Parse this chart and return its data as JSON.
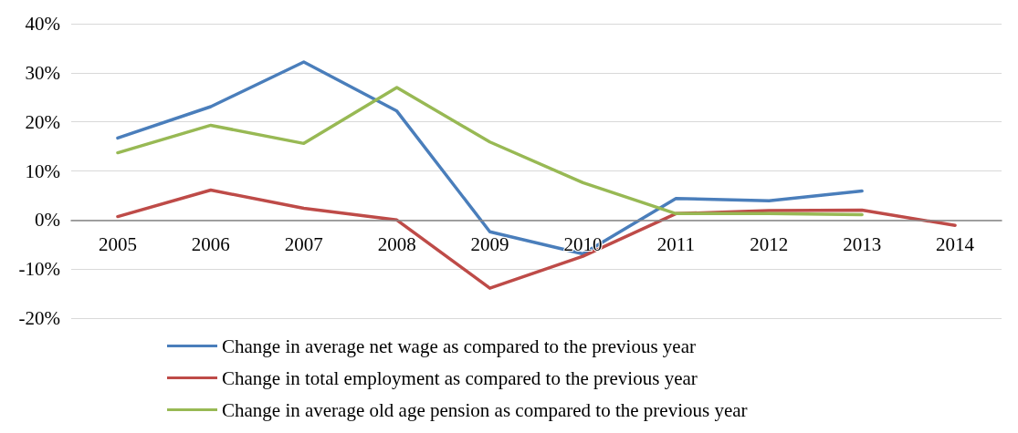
{
  "chart_data": {
    "type": "line",
    "categories": [
      "2005",
      "2006",
      "2007",
      "2008",
      "2009",
      "2010",
      "2011",
      "2012",
      "2013",
      "2014"
    ],
    "series": [
      {
        "name": "Change in average net wage as compared to the previous year",
        "color": "#4a7ebb",
        "values": [
          16.7,
          23.1,
          32.2,
          22.2,
          -2.4,
          -6.9,
          4.4,
          3.9,
          5.9,
          null
        ]
      },
      {
        "name": "Change in total employment as compared to the previous year",
        "color": "#be4b48",
        "values": [
          0.7,
          6.1,
          2.4,
          0,
          -13.9,
          -7.4,
          1.3,
          1.9,
          2.0,
          -1.1
        ]
      },
      {
        "name": "Change in average old age pension as compared to the previous year",
        "color": "#98b954",
        "values": [
          13.7,
          19.3,
          15.6,
          27.0,
          15.9,
          7.6,
          1.3,
          1.3,
          1.1,
          null
        ]
      }
    ],
    "ylim": [
      -20,
      40
    ],
    "yticks": [
      {
        "value": -20,
        "label": "-20%"
      },
      {
        "value": -10,
        "label": "-10%"
      },
      {
        "value": 0,
        "label": "0%"
      },
      {
        "value": 10,
        "label": "10%"
      },
      {
        "value": 20,
        "label": "20%"
      },
      {
        "value": 30,
        "label": "30%"
      },
      {
        "value": 40,
        "label": "40%"
      }
    ],
    "grid": "y",
    "legend": "bottom",
    "marker": "none",
    "line_style": "solid"
  }
}
